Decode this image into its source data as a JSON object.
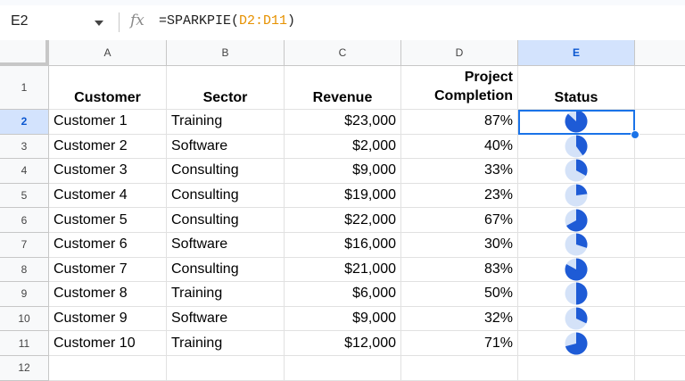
{
  "formula_bar": {
    "cell_ref": "E2",
    "fx_label": "fx",
    "formula_prefix": "=SPARKPIE(",
    "formula_ref": "D2:D11",
    "formula_suffix": ")"
  },
  "columns": [
    "A",
    "B",
    "C",
    "D",
    "E"
  ],
  "selected_column": "E",
  "rows": [
    "1",
    "2",
    "3",
    "4",
    "5",
    "6",
    "7",
    "8",
    "9",
    "10",
    "11",
    "12"
  ],
  "selected_row": "2",
  "headers": {
    "customer": "Customer",
    "sector": "Sector",
    "revenue": "Revenue",
    "completion_line1": "Project",
    "completion_line2": "Completion",
    "status": "Status"
  },
  "data_rows": [
    {
      "customer": "Customer 1",
      "sector": "Training",
      "revenue": "$23,000",
      "completion": "87%",
      "fraction": 0.87
    },
    {
      "customer": "Customer 2",
      "sector": "Software",
      "revenue": "$2,000",
      "completion": "40%",
      "fraction": 0.4
    },
    {
      "customer": "Customer 3",
      "sector": "Consulting",
      "revenue": "$9,000",
      "completion": "33%",
      "fraction": 0.33
    },
    {
      "customer": "Customer 4",
      "sector": "Consulting",
      "revenue": "$19,000",
      "completion": "23%",
      "fraction": 0.23
    },
    {
      "customer": "Customer 5",
      "sector": "Consulting",
      "revenue": "$22,000",
      "completion": "67%",
      "fraction": 0.67
    },
    {
      "customer": "Customer 6",
      "sector": "Software",
      "revenue": "$16,000",
      "completion": "30%",
      "fraction": 0.3
    },
    {
      "customer": "Customer 7",
      "sector": "Consulting",
      "revenue": "$21,000",
      "completion": "83%",
      "fraction": 0.83
    },
    {
      "customer": "Customer 8",
      "sector": "Training",
      "revenue": "$6,000",
      "completion": "50%",
      "fraction": 0.5
    },
    {
      "customer": "Customer 9",
      "sector": "Software",
      "revenue": "$9,000",
      "completion": "32%",
      "fraction": 0.32
    },
    {
      "customer": "Customer 10",
      "sector": "Training",
      "revenue": "$12,000",
      "completion": "71%",
      "fraction": 0.71
    }
  ],
  "colors": {
    "pie_fill": "#1e5bd6",
    "pie_background": "#d4e2f8",
    "selection": "#1a73e8"
  }
}
